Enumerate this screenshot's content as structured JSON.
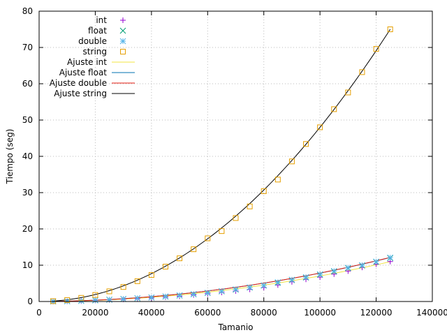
{
  "chart_data": {
    "type": "scatter",
    "xlabel": "Tamanio",
    "ylabel": "Tiempo (seg)",
    "xlim": [
      0,
      140000
    ],
    "ylim": [
      0,
      80
    ],
    "xticks": [
      0,
      20000,
      40000,
      60000,
      80000,
      100000,
      120000,
      140000
    ],
    "yticks": [
      0,
      10,
      20,
      30,
      40,
      50,
      60,
      70,
      80
    ],
    "grid": true,
    "legend_position": "top-left",
    "series": [
      {
        "name": "int",
        "kind": "points",
        "marker": "plus",
        "color": "#9400d3",
        "x": [
          5000,
          10000,
          15000,
          20000,
          25000,
          30000,
          35000,
          40000,
          45000,
          50000,
          55000,
          60000,
          65000,
          70000,
          75000,
          80000,
          85000,
          90000,
          95000,
          100000,
          105000,
          110000,
          115000,
          120000,
          125000
        ],
        "y": [
          0.03,
          0.08,
          0.15,
          0.3,
          0.45,
          0.6,
          0.75,
          0.95,
          1.2,
          1.45,
          1.8,
          2.15,
          2.5,
          2.9,
          3.35,
          3.85,
          4.55,
          5.4,
          6.1,
          6.7,
          7.55,
          8.4,
          9.4,
          10.3,
          11.0
        ]
      },
      {
        "name": "float",
        "kind": "points",
        "marker": "cross",
        "color": "#009e73",
        "x": [
          5000,
          10000,
          15000,
          20000,
          25000,
          30000,
          35000,
          40000,
          45000,
          50000,
          55000,
          60000,
          65000,
          70000,
          75000,
          80000,
          85000,
          90000,
          95000,
          100000,
          105000,
          110000,
          115000,
          120000,
          125000
        ],
        "y": [
          0.03,
          0.08,
          0.17,
          0.32,
          0.5,
          0.7,
          0.9,
          1.1,
          1.35,
          1.65,
          2.0,
          2.35,
          2.8,
          3.3,
          3.85,
          4.4,
          5.2,
          5.9,
          6.6,
          7.4,
          8.3,
          9.2,
          9.9,
          10.9,
          12.0
        ]
      },
      {
        "name": "double",
        "kind": "points",
        "marker": "star",
        "color": "#56b4e9",
        "x": [
          5000,
          10000,
          15000,
          20000,
          25000,
          30000,
          35000,
          40000,
          45000,
          50000,
          55000,
          60000,
          65000,
          70000,
          75000,
          80000,
          85000,
          90000,
          95000,
          100000,
          105000,
          110000,
          115000,
          120000,
          125000
        ],
        "y": [
          0.03,
          0.08,
          0.17,
          0.33,
          0.5,
          0.7,
          0.9,
          1.1,
          1.4,
          1.7,
          2.05,
          2.4,
          2.85,
          3.35,
          3.9,
          4.45,
          5.3,
          6.0,
          6.7,
          7.5,
          8.4,
          9.3,
          10.0,
          11.0,
          12.1
        ]
      },
      {
        "name": "string",
        "kind": "points",
        "marker": "square",
        "color": "#e69f00",
        "x": [
          5000,
          10000,
          15000,
          20000,
          25000,
          30000,
          35000,
          40000,
          45000,
          50000,
          55000,
          60000,
          65000,
          70000,
          75000,
          80000,
          85000,
          90000,
          95000,
          100000,
          105000,
          110000,
          115000,
          120000,
          125000
        ],
        "y": [
          0.1,
          0.4,
          1.0,
          1.8,
          2.8,
          4.0,
          5.6,
          7.3,
          9.6,
          11.9,
          14.4,
          17.4,
          19.4,
          23.0,
          26.2,
          30.4,
          33.6,
          38.6,
          43.4,
          48.0,
          53.0,
          57.6,
          63.2,
          69.6,
          75.0
        ]
      },
      {
        "name": "Ajuste int",
        "kind": "fit",
        "color": "#f0e442",
        "coef": [
          6.92e-10,
          1.2e-06
        ]
      },
      {
        "name": "Ajuste float",
        "kind": "fit",
        "color": "#0072b2",
        "coef": [
          7.46e-10,
          3.6e-06
        ]
      },
      {
        "name": "Ajuste double",
        "kind": "fit",
        "color": "#e51e10",
        "coef": [
          7.52e-10,
          3.2e-06
        ]
      },
      {
        "name": "Ajuste string",
        "kind": "fit",
        "color": "#000000",
        "coef": [
          4.8e-09,
          0.0
        ]
      }
    ]
  }
}
